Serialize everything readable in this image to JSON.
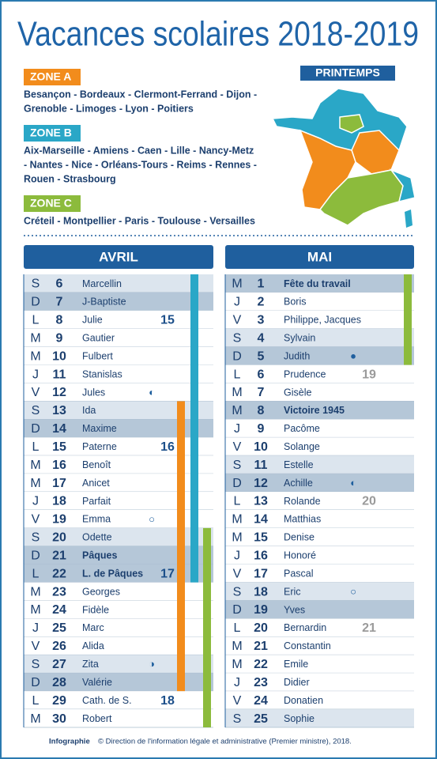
{
  "header": {
    "title": "Vacances scolaires 2018-2019",
    "season": "PRINTEMPS"
  },
  "zones": [
    {
      "label": "ZONE A",
      "color": "#f28c1c",
      "lines": [
        "Besançon - Bordeaux - Clermont-Ferrand - Dijon -",
        "Grenoble - Limoges - Lyon - Poitiers"
      ]
    },
    {
      "label": "ZONE B",
      "color": "#2aa7c7",
      "lines": [
        "Aix-Marseille - Amiens - Caen - Lille - Nancy-Metz",
        "- Nantes - Nice - Orléans-Tours - Reims - Rennes -",
        "Rouen - Strasbourg"
      ]
    },
    {
      "label": "ZONE C",
      "color": "#8cbb3c",
      "lines": [
        "Créteil - Montpellier - Paris - Toulouse - Versailles"
      ]
    }
  ],
  "months": [
    {
      "name": "AVRIL",
      "week_color": "#1c4f8a",
      "holidays": [
        {
          "zone": 1,
          "from": 6,
          "to": 22
        },
        {
          "zone": 0,
          "from": 13,
          "to": 28
        },
        {
          "zone": 2,
          "from": 20,
          "to": 30
        }
      ],
      "days": [
        {
          "dow": "S",
          "num": 6,
          "saint": "Marcellin",
          "shade": "light"
        },
        {
          "dow": "D",
          "num": 7,
          "saint": "J-Baptiste",
          "shade": "dark"
        },
        {
          "dow": "L",
          "num": 8,
          "saint": "Julie",
          "week": 15
        },
        {
          "dow": "M",
          "num": 9,
          "saint": "Gautier"
        },
        {
          "dow": "M",
          "num": 10,
          "saint": "Fulbert"
        },
        {
          "dow": "J",
          "num": 11,
          "saint": "Stanislas"
        },
        {
          "dow": "V",
          "num": 12,
          "saint": "Jules",
          "moon": "◐"
        },
        {
          "dow": "S",
          "num": 13,
          "saint": "Ida",
          "shade": "light"
        },
        {
          "dow": "D",
          "num": 14,
          "saint": "Maxime",
          "shade": "dark"
        },
        {
          "dow": "L",
          "num": 15,
          "saint": "Paterne",
          "week": 16
        },
        {
          "dow": "M",
          "num": 16,
          "saint": "Benoît"
        },
        {
          "dow": "M",
          "num": 17,
          "saint": "Anicet"
        },
        {
          "dow": "J",
          "num": 18,
          "saint": "Parfait"
        },
        {
          "dow": "V",
          "num": 19,
          "saint": "Emma",
          "moon": "○"
        },
        {
          "dow": "S",
          "num": 20,
          "saint": "Odette",
          "shade": "light"
        },
        {
          "dow": "D",
          "num": 21,
          "saint": "Pâques",
          "shade": "dark",
          "bold": true
        },
        {
          "dow": "L",
          "num": 22,
          "saint": "L. de Pâques",
          "shade": "dark",
          "bold": true,
          "week": 17
        },
        {
          "dow": "M",
          "num": 23,
          "saint": "Georges"
        },
        {
          "dow": "M",
          "num": 24,
          "saint": "Fidèle"
        },
        {
          "dow": "J",
          "num": 25,
          "saint": "Marc"
        },
        {
          "dow": "V",
          "num": 26,
          "saint": "Alida"
        },
        {
          "dow": "S",
          "num": 27,
          "saint": "Zita",
          "shade": "light",
          "moon": "◑"
        },
        {
          "dow": "D",
          "num": 28,
          "saint": "Valérie",
          "shade": "dark"
        },
        {
          "dow": "L",
          "num": 29,
          "saint": "Cath. de S.",
          "week": 18
        },
        {
          "dow": "M",
          "num": 30,
          "saint": "Robert"
        }
      ]
    },
    {
      "name": "MAI",
      "week_color": "#9a9a9a",
      "holidays": [
        {
          "zone": 2,
          "from": 1,
          "to": 5
        }
      ],
      "days": [
        {
          "dow": "M",
          "num": 1,
          "saint": "Fête du travail",
          "shade": "dark",
          "bold": true
        },
        {
          "dow": "J",
          "num": 2,
          "saint": "Boris"
        },
        {
          "dow": "V",
          "num": 3,
          "saint": "Philippe, Jacques"
        },
        {
          "dow": "S",
          "num": 4,
          "saint": "Sylvain",
          "shade": "light"
        },
        {
          "dow": "D",
          "num": 5,
          "saint": "Judith",
          "shade": "dark",
          "moon": "●"
        },
        {
          "dow": "L",
          "num": 6,
          "saint": "Prudence",
          "week": 19
        },
        {
          "dow": "M",
          "num": 7,
          "saint": "Gisèle"
        },
        {
          "dow": "M",
          "num": 8,
          "saint": "Victoire 1945",
          "shade": "dark",
          "bold": true
        },
        {
          "dow": "J",
          "num": 9,
          "saint": "Pacôme"
        },
        {
          "dow": "V",
          "num": 10,
          "saint": "Solange"
        },
        {
          "dow": "S",
          "num": 11,
          "saint": "Estelle",
          "shade": "light"
        },
        {
          "dow": "D",
          "num": 12,
          "saint": "Achille",
          "shade": "dark",
          "moon": "◐"
        },
        {
          "dow": "L",
          "num": 13,
          "saint": "Rolande",
          "week": 20
        },
        {
          "dow": "M",
          "num": 14,
          "saint": "Matthias"
        },
        {
          "dow": "M",
          "num": 15,
          "saint": "Denise"
        },
        {
          "dow": "J",
          "num": 16,
          "saint": "Honoré"
        },
        {
          "dow": "V",
          "num": 17,
          "saint": "Pascal"
        },
        {
          "dow": "S",
          "num": 18,
          "saint": "Eric",
          "shade": "light",
          "moon": "○"
        },
        {
          "dow": "D",
          "num": 19,
          "saint": "Yves",
          "shade": "dark"
        },
        {
          "dow": "L",
          "num": 20,
          "saint": "Bernardin",
          "week": 21
        },
        {
          "dow": "M",
          "num": 21,
          "saint": "Constantin"
        },
        {
          "dow": "M",
          "num": 22,
          "saint": "Emile"
        },
        {
          "dow": "J",
          "num": 23,
          "saint": "Didier"
        },
        {
          "dow": "V",
          "num": 24,
          "saint": "Donatien"
        },
        {
          "dow": "S",
          "num": 25,
          "saint": "Sophie",
          "shade": "light"
        }
      ]
    }
  ],
  "footer": {
    "bold": "Infographie",
    "text": "© Direction de l'information légale et administrative (Premier ministre), 2018."
  }
}
